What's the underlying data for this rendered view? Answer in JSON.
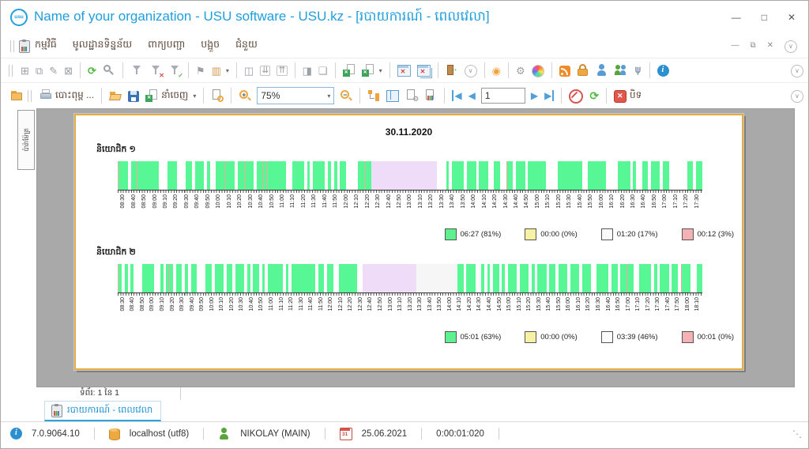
{
  "window": {
    "logo_text": "usu",
    "title": "Name of your organization - USU software - USU.kz - [របាយការណ៍ - ពេលវេលា]",
    "title_controls": [
      {
        "name": "minimize",
        "glyph": "—"
      },
      {
        "name": "maximize",
        "glyph": "□"
      },
      {
        "name": "close",
        "glyph": "✕"
      }
    ]
  },
  "menu": {
    "items": [
      "កម្មវិធី",
      "មូលដ្ឋានទិន្នន័យ",
      "ពាក្យបញ្ជា",
      "បង្អួច",
      "ជំនួយ"
    ],
    "child_controls": [
      {
        "name": "child-minimize",
        "glyph": "—"
      },
      {
        "name": "child-restore",
        "glyph": "⧉"
      },
      {
        "name": "child-close",
        "glyph": "✕"
      }
    ]
  },
  "toolbar_main": {
    "icons": [
      {
        "name": "add-record",
        "kind": "glyph",
        "glyph": "⊞",
        "color": "#9aa0a6"
      },
      {
        "name": "copy-record",
        "kind": "glyph",
        "glyph": "⧉",
        "color": "#9aa0a6"
      },
      {
        "name": "edit-record",
        "kind": "glyph",
        "glyph": "✎",
        "color": "#9aa0a6"
      },
      {
        "name": "delete-record",
        "kind": "glyph",
        "glyph": "⊠",
        "color": "#9aa0a6"
      },
      {
        "sep": true
      },
      {
        "name": "refresh",
        "kind": "glyph",
        "glyph": "⟳",
        "color": "#58b947",
        "bold": true
      },
      {
        "name": "search",
        "kind": "mag"
      },
      {
        "sep": true
      },
      {
        "name": "filter",
        "kind": "funnel"
      },
      {
        "name": "filter-clear",
        "kind": "funnel",
        "badge": "✕",
        "badgeColor": "#d9534f"
      },
      {
        "name": "filter-checked",
        "kind": "funnel",
        "badge": "✓",
        "badgeColor": "#58b947"
      },
      {
        "sep": true
      },
      {
        "name": "flag",
        "kind": "glyph",
        "glyph": "⚑",
        "color": "#9aa0a6"
      },
      {
        "name": "image",
        "kind": "glyph",
        "glyph": "▥",
        "color": "#cf9a52",
        "caret": true
      },
      {
        "sep": true
      },
      {
        "name": "insert-panel",
        "kind": "glyph",
        "glyph": "◫",
        "color": "#9aa0a6"
      },
      {
        "name": "collapse-all",
        "kind": "glyph",
        "glyph": "⇊",
        "color": "#9aa0a6",
        "boxed": true
      },
      {
        "name": "expand-all",
        "kind": "glyph",
        "glyph": "⇈",
        "color": "#9aa0a6",
        "boxed": true
      },
      {
        "sep": true
      },
      {
        "name": "add-column",
        "kind": "glyph",
        "glyph": "◨",
        "color": "#9aa0a6"
      },
      {
        "name": "new-note",
        "kind": "glyph",
        "glyph": "❏",
        "color": "#9aa0a6"
      },
      {
        "sep": true
      },
      {
        "name": "excel-import",
        "kind": "excel"
      },
      {
        "name": "excel-export",
        "kind": "excel",
        "caret": true
      },
      {
        "sep": true
      },
      {
        "name": "close-window",
        "kind": "winx"
      },
      {
        "name": "close-all-windows",
        "kind": "winx",
        "variant": "double"
      },
      {
        "sep": true
      },
      {
        "name": "exit",
        "kind": "door"
      },
      {
        "name": "more-chevron",
        "kind": "circlechev"
      },
      {
        "sep": true
      },
      {
        "name": "map-pin",
        "kind": "glyph",
        "glyph": "◉",
        "color": "#f0a33c"
      },
      {
        "sep": true
      },
      {
        "name": "settings-gear",
        "kind": "glyph",
        "glyph": "⚙",
        "color": "#9aa0a6"
      },
      {
        "name": "color-wheel",
        "kind": "wheel"
      },
      {
        "sep": true
      },
      {
        "name": "rss",
        "kind": "rss"
      },
      {
        "name": "security-lock",
        "kind": "lock"
      },
      {
        "name": "user-access",
        "kind": "person"
      },
      {
        "name": "user-groups",
        "kind": "people"
      },
      {
        "name": "plugin",
        "kind": "glyph",
        "glyph": "⋔",
        "color": "#8f9bb3",
        "rot": true,
        "bold": true
      },
      {
        "sep": true
      },
      {
        "name": "info",
        "kind": "info"
      }
    ]
  },
  "toolbar_report": {
    "print_label": "បោះពុម្ព ...",
    "export_label": "នាំចេញ",
    "zoom_value": "75%",
    "page_value": "1",
    "close_label": "បិទ"
  },
  "side_tab": {
    "label": "ប៉ារ៉ាម៉ែត្រ"
  },
  "report": {
    "date_title": "30.11.2020",
    "palette": {
      "g": "#57f795",
      "w": "#ffffff",
      "p": "#f3a9a3",
      "l": "#eedcf8",
      "f": "#f6f6f6"
    },
    "charts": [
      {
        "type": "timeline-barcode",
        "label": "និយោជិក ១",
        "pattern_chunks": [
          "pgggwggpgg",
          "gggggwww",
          "gggwww",
          "ggwgggwgww",
          "gggpgggwggpgggwg",
          "gpgpggggggww",
          "ggggwgwgggg",
          "wgwgwggwwww",
          "ggpgg",
          "llllllllllllllllllllll",
          "wwwgwggggwg",
          "ggwgggwwggww",
          "pggwgggwgg",
          "ggggwwww",
          "ggggggggww",
          "ggggggwwww",
          "ggggwgww",
          "ggwgggwggwww",
          "wwwggwgg"
        ],
        "ticks": [
          "08:30",
          "08:40",
          "08:50",
          "09:00",
          "09:10",
          "09:20",
          "09:30",
          "09:40",
          "09:50",
          "10:00",
          "10:10",
          "10:20",
          "10:30",
          "10:40",
          "10:50",
          "11:00",
          "11:10",
          "11:20",
          "11:30",
          "11:40",
          "11:50",
          "12:00",
          "12:10",
          "12:20",
          "12:30",
          "12:40",
          "12:50",
          "13:00",
          "13:10",
          "13:20",
          "13:30",
          "13:40",
          "13:50",
          "14:00",
          "14:10",
          "14:20",
          "14:30",
          "14:40",
          "14:50",
          "15:00",
          "15:10",
          "15:20",
          "15:30",
          "15:40",
          "15:50",
          "16:00",
          "16:10",
          "16:20",
          "16:30",
          "16:40",
          "16:50",
          "17:00",
          "17:10",
          "17:20",
          "17:30"
        ],
        "legend": [
          {
            "color": "#5ff08f",
            "label": "06:27 (81%)"
          },
          {
            "color": "#f7f2a3",
            "label": "00:00 (0%)"
          },
          {
            "color": "#fbfbfb",
            "label": "01:20 (17%)"
          },
          {
            "color": "#f5b2b6",
            "label": "00:12 (3%)"
          }
        ]
      },
      {
        "type": "timeline-barcode",
        "label": "និយោជិក ២",
        "pattern_chunks": [
          "p",
          "gwgwg",
          "www",
          "gggg",
          "ww",
          "gwgpgwggwgwggw",
          "ww",
          "ggwgggwggwgggw",
          "gwggwgwg",
          "gggg",
          "wgwg",
          "ggggggg",
          "w",
          "ggwgg",
          "ww",
          "gggggg",
          "ww",
          "llllllllllllllllll",
          "ffffffffffffff",
          "ggwggg",
          "ww",
          "gwgwggwgwg",
          "ggwggg",
          "wgwgg",
          "gwggwggg",
          "wgggwgg",
          "gwwggggw",
          "ggwgg",
          "pgg",
          "ww",
          "gggg",
          "wgw",
          "ggg",
          "wgg",
          "wpg",
          "ggw",
          "wgg"
        ],
        "ticks": [
          "08:30",
          "08:40",
          "08:50",
          "09:00",
          "09:10",
          "09:20",
          "09:30",
          "09:40",
          "09:50",
          "10:00",
          "10:10",
          "10:20",
          "10:30",
          "10:40",
          "10:50",
          "11:00",
          "11:10",
          "11:20",
          "11:30",
          "11:40",
          "11:50",
          "12:00",
          "12:10",
          "12:20",
          "12:30",
          "12:40",
          "12:50",
          "13:00",
          "13:10",
          "13:20",
          "13:30",
          "13:40",
          "13:50",
          "14:00",
          "14:10",
          "14:20",
          "14:30",
          "14:40",
          "14:50",
          "15:00",
          "15:10",
          "15:20",
          "15:30",
          "15:40",
          "15:50",
          "16:00",
          "16:10",
          "16:20",
          "16:30",
          "16:40",
          "16:50",
          "17:00",
          "17:10",
          "17:20",
          "17:30",
          "17:40",
          "17:50",
          "18:00",
          "18:10"
        ],
        "legend": [
          {
            "color": "#5ff08f",
            "label": "05:01 (63%)"
          },
          {
            "color": "#f7f2a3",
            "label": "00:00 (0%)"
          },
          {
            "color": "#fbfbfb",
            "label": "03:39 (46%)"
          },
          {
            "color": "#f5b2b6",
            "label": "00:01 (0%)"
          }
        ]
      }
    ]
  },
  "page_bar": {
    "text": "ទំព័រ: 1 នៃ 1"
  },
  "tab_bar": {
    "active_tab": "របាយការណ៍ - ពេលវេលា"
  },
  "status_bar": {
    "version": "7.0.9064.10",
    "database": "localhost (utf8)",
    "user": "NIKOLAY (MAIN)",
    "calendar_icon_text": "31",
    "date": "25.06.2021",
    "timer": "0:00:01:020"
  }
}
